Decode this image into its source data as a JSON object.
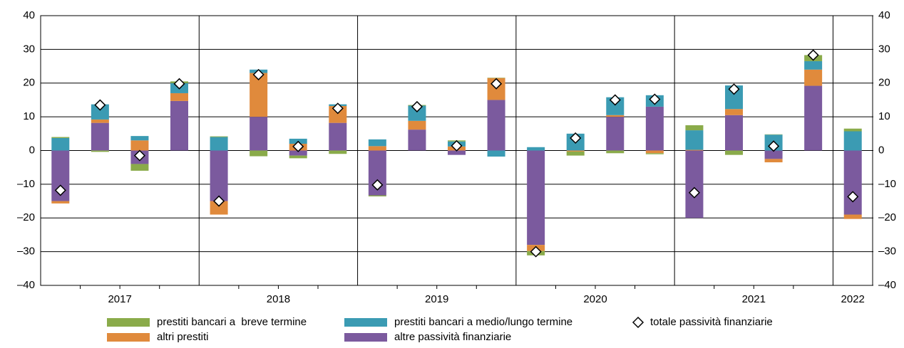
{
  "chart_data": {
    "type": "stacked_bar",
    "categories": [
      null,
      null,
      null,
      null,
      null,
      null,
      null,
      null,
      null,
      null,
      null,
      null,
      null,
      null,
      null,
      null,
      null,
      null,
      null,
      null,
      null
    ],
    "x_groups": [
      {
        "label": "2017",
        "span": 4
      },
      {
        "label": "2018",
        "span": 4
      },
      {
        "label": "2019",
        "span": 4
      },
      {
        "label": "2020",
        "span": 4
      },
      {
        "label": "2021",
        "span": 4
      },
      {
        "label": "2022",
        "span": 1
      }
    ],
    "series": [
      {
        "name": "prestiti bancari a  breve termine",
        "color": "#8aab4a",
        "values": [
          0.3,
          -0.4,
          -2,
          0.5,
          0.2,
          -1.7,
          -0.8,
          -1,
          -0.3,
          0.2,
          0.3,
          0.1,
          -1.3,
          -1.2,
          -0.8,
          -0.3,
          1.5,
          -1.3,
          0.1,
          1.8,
          0.8
        ]
      },
      {
        "name": "prestiti bancari a medio/lungo termine",
        "color": "#3b9bb3",
        "values": [
          3.7,
          4.5,
          1.3,
          3,
          4,
          1,
          1.5,
          0.5,
          2,
          4.5,
          1.5,
          -1.8,
          1,
          5,
          5.3,
          3.4,
          5.8,
          7,
          4.7,
          2.5,
          5.7
        ]
      },
      {
        "name": "altri prestiti",
        "color": "#e08a3c",
        "values": [
          -0.7,
          1,
          3,
          2.3,
          -4,
          13,
          2,
          5,
          1.3,
          2.6,
          1.2,
          6.5,
          -1.8,
          -0.3,
          0.5,
          -0.8,
          0.2,
          1.8,
          -1,
          4.8,
          -1.3
        ]
      },
      {
        "name": "altre passività finanziarie",
        "color": "#7b5a9e",
        "values": [
          -15,
          8.2,
          -4,
          14.7,
          -15,
          10,
          -1.5,
          8.2,
          -13.3,
          6.2,
          -1.3,
          15,
          -28,
          0,
          10,
          13,
          -20,
          10.5,
          -2.5,
          19.2,
          -19
        ]
      },
      {
        "name": "totale passività finanziarie",
        "marker": "diamond",
        "color": "#ffffff",
        "values": [
          -11.8,
          13.5,
          -1.5,
          19.8,
          -15,
          22.5,
          1.2,
          12.5,
          -10.2,
          13,
          1.4,
          19.8,
          -30,
          3.7,
          15,
          15.2,
          -12.5,
          18.2,
          1.3,
          28.3,
          -13.7
        ]
      }
    ],
    "ylim": [
      -40,
      40
    ],
    "yticks": [
      {
        "value": -40,
        "label": "–40"
      },
      {
        "value": -30,
        "label": "–30"
      },
      {
        "value": -20,
        "label": "–20"
      },
      {
        "value": -10,
        "label": "–10"
      },
      0,
      10,
      20,
      30,
      40
    ],
    "y2lim": [
      -40,
      40
    ],
    "y2ticks": [
      {
        "value": -40,
        "label": "–40"
      },
      {
        "value": -30,
        "label": "–30"
      },
      {
        "value": -20,
        "label": "–20"
      },
      {
        "value": -10,
        "label": "–10"
      },
      0,
      10,
      20,
      30,
      40
    ],
    "grid": true,
    "legend": "bottom"
  }
}
